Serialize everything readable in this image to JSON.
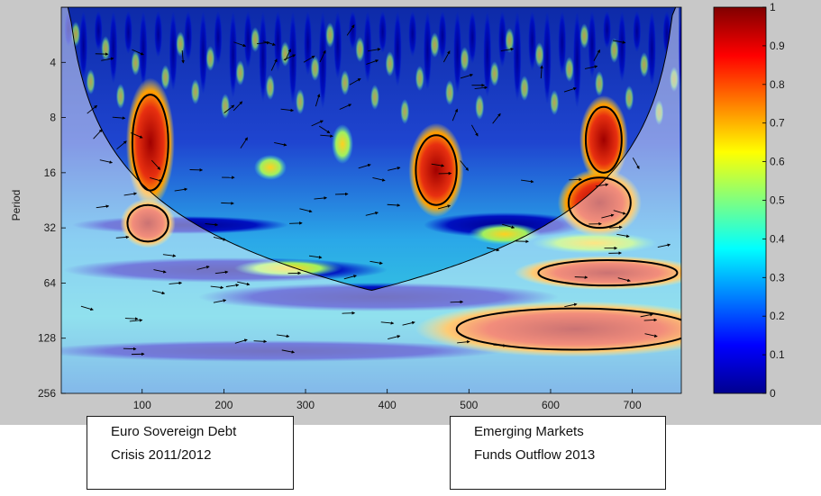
{
  "chart_data": {
    "type": "heatmap",
    "title": "",
    "xlabel": "",
    "ylabel": "Period",
    "x_ticks": [
      100,
      200,
      300,
      400,
      500,
      600,
      700
    ],
    "xlim": [
      1,
      760
    ],
    "y_scale": "log2",
    "y_ticks": [
      4,
      8,
      16,
      32,
      64,
      128,
      256
    ],
    "ylim": [
      2,
      256
    ],
    "colorbar": {
      "ticks": [
        0,
        0.1,
        0.2,
        0.3,
        0.4,
        0.5,
        0.6,
        0.7,
        0.8,
        0.9,
        1
      ],
      "range": [
        0,
        1
      ],
      "colormap": "jet"
    },
    "cone_of_influence": true,
    "high_coherence_regions": [
      {
        "x_center": 110,
        "period_center": 11,
        "x_halfwidth": 22,
        "period_span": [
          6,
          20
        ]
      },
      {
        "x_center": 107,
        "period_center": 30,
        "x_halfwidth": 25,
        "period_span": [
          24,
          38
        ]
      },
      {
        "x_center": 460,
        "period_center": 16,
        "x_halfwidth": 25,
        "period_span": [
          10,
          24
        ]
      },
      {
        "x_center": 665,
        "period_center": 11,
        "x_halfwidth": 22,
        "period_span": [
          7,
          16
        ]
      },
      {
        "x_center": 660,
        "period_center": 24,
        "x_halfwidth": 38,
        "period_span": [
          17,
          32
        ]
      },
      {
        "x_center": 670,
        "period_center": 56,
        "x_halfwidth": 85,
        "period_span": [
          48,
          66
        ]
      },
      {
        "x_center": 630,
        "period_center": 112,
        "x_halfwidth": 145,
        "period_span": [
          88,
          148
        ]
      }
    ],
    "annotations": [
      {
        "lines": [
          "Euro Sovereign Debt",
          "Crisis 2011/2012"
        ]
      },
      {
        "lines": [
          "Emerging Markets",
          "Funds Outflow 2013"
        ]
      }
    ]
  },
  "colors": {
    "figure_background": "#c8c8c8",
    "contour": "#000000",
    "colormap_low": "#00008f",
    "colormap_high": "#800000"
  }
}
